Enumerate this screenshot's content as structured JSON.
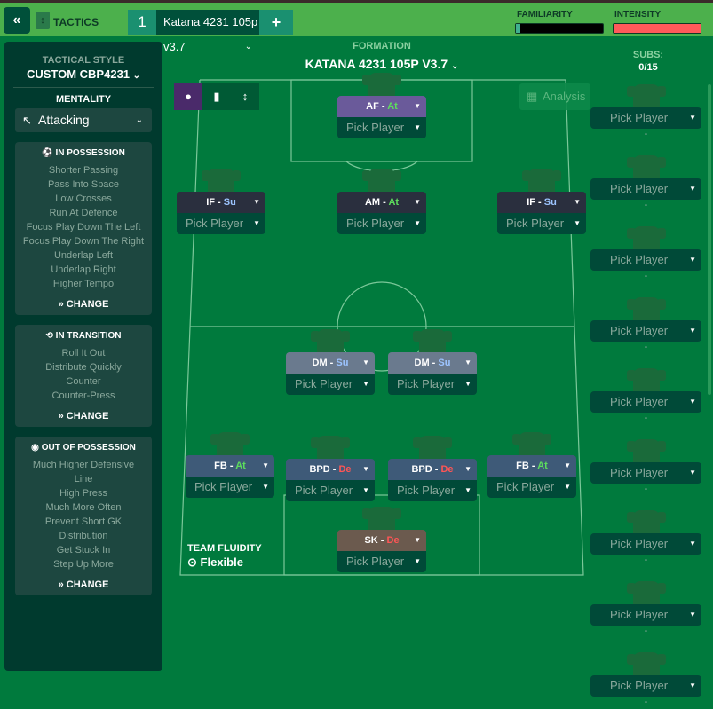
{
  "topbar": {
    "back_icon": "double-chevron-left",
    "tactics_label": "TACTICS",
    "tab_number": "1",
    "tab_name": "Katana 4231 105p v3.7",
    "add_label": "+",
    "familiarity_label": "FAMILIARITY",
    "familiarity_pct": 5,
    "intensity_label": "INTENSITY",
    "intensity_pct": 100,
    "colors": {
      "bar": "#4cb04c",
      "familiarity": "#40b090",
      "intensity": "#ff5a5a"
    }
  },
  "sidebar": {
    "style_label": "TACTICAL STYLE",
    "style_value": "CUSTOM CBP4231",
    "mentality_label": "MENTALITY",
    "mentality_value": "Attacking",
    "in_possession": {
      "title": "IN POSSESSION",
      "items": [
        "Shorter Passing",
        "Pass Into Space",
        "Low Crosses",
        "Run At Defence",
        "Focus Play Down The Left",
        "Focus Play Down The Right",
        "Underlap Left",
        "Underlap Right",
        "Higher Tempo"
      ],
      "change": "CHANGE"
    },
    "in_transition": {
      "title": "IN TRANSITION",
      "items": [
        "Roll It Out",
        "Distribute Quickly",
        "Counter",
        "Counter-Press"
      ],
      "change": "CHANGE"
    },
    "out_of_possession": {
      "title": "OUT OF POSSESSION",
      "items": [
        "Much Higher Defensive",
        "Line",
        "High Press",
        "Much More Often",
        "Prevent Short GK",
        "Distribution",
        "Get Stuck In",
        "Step Up More"
      ],
      "change": "CHANGE"
    }
  },
  "formation": {
    "label": "FORMATION",
    "name": "KATANA 4231 105P V3.7",
    "analysis": "Analysis"
  },
  "positions": [
    {
      "role": "AF",
      "duty": "At",
      "player": "Pick Player"
    },
    {
      "role": "IF",
      "duty": "Su",
      "player": "Pick Player"
    },
    {
      "role": "AM",
      "duty": "At",
      "player": "Pick Player"
    },
    {
      "role": "IF",
      "duty": "Su",
      "player": "Pick Player"
    },
    {
      "role": "DM",
      "duty": "Su",
      "player": "Pick Player"
    },
    {
      "role": "DM",
      "duty": "Su",
      "player": "Pick Player"
    },
    {
      "role": "FB",
      "duty": "At",
      "player": "Pick Player"
    },
    {
      "role": "BPD",
      "duty": "De",
      "player": "Pick Player"
    },
    {
      "role": "BPD",
      "duty": "De",
      "player": "Pick Player"
    },
    {
      "role": "FB",
      "duty": "At",
      "player": "Pick Player"
    },
    {
      "role": "SK",
      "duty": "De",
      "player": "Pick Player"
    }
  ],
  "fluidity": {
    "label": "TEAM FLUIDITY",
    "value": "Flexible"
  },
  "subs": {
    "label": "SUBS:",
    "count": "0/15",
    "items": [
      "Pick Player",
      "Pick Player",
      "Pick Player",
      "Pick Player",
      "Pick Player",
      "Pick Player",
      "Pick Player",
      "Pick Player",
      "Pick Player"
    ],
    "dash": "-"
  }
}
